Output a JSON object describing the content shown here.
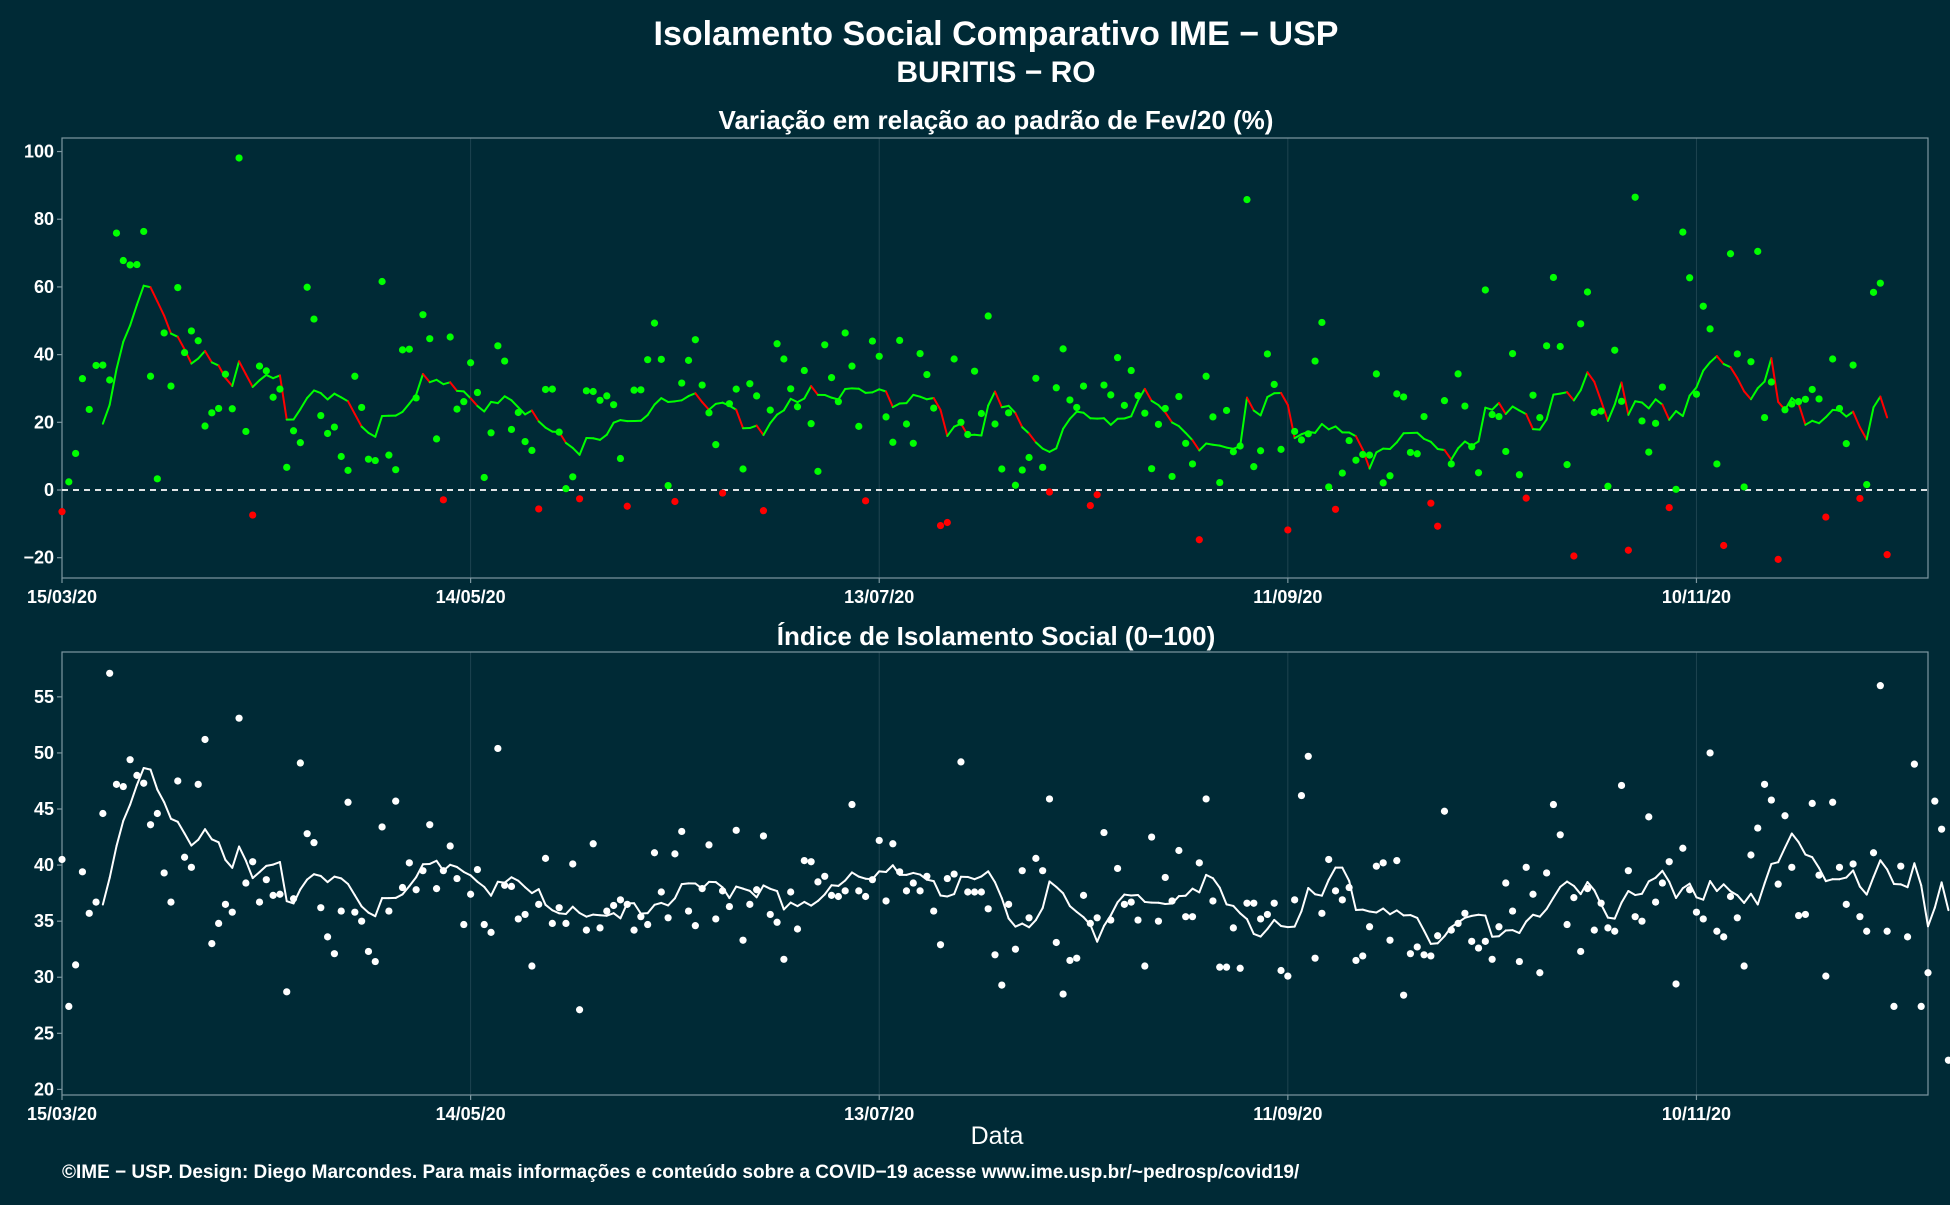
{
  "header": {
    "title": "Isolamento Social Comparativo IME − USP",
    "subtitle": "BURITIS − RO"
  },
  "footer": {
    "credits": "©IME − USP. Design: Diego Marcondes. Para mais informações e conteúdo sobre a COVID−19 acesse www.ime.usp.br/~pedrosp/covid19/"
  },
  "colors": {
    "background": "#002a36",
    "positive": "#00ff00",
    "negative": "#ff0000",
    "index": "#ffffff",
    "zero_line": "#ffffff",
    "grid": "#1e4450"
  },
  "chart_data": [
    {
      "type": "scatter",
      "title": "Variação em relação ao padrão de Fev/20 (%)",
      "xlabel": "",
      "ylabel": "",
      "x_start": "15/03/20",
      "x_end": "14/12/20",
      "xticks": [
        "15/03/20",
        "14/05/20",
        "13/07/20",
        "11/09/20",
        "10/11/20"
      ],
      "yticks": [
        -20,
        0,
        20,
        40,
        60,
        80,
        100
      ],
      "ylim": [
        -26,
        104
      ],
      "reference_line": {
        "y": 0,
        "style": "dashed"
      },
      "grid": true,
      "moving_average_window": 7,
      "values": [
        -6.4,
        2.4,
        10.8,
        32.9,
        23.8,
        36.8,
        36.9,
        32.5,
        75.9,
        67.8,
        66.5,
        66.6,
        76.4,
        33.6,
        3.3,
        46.4,
        30.7,
        59.8,
        40.6,
        47,
        44.1,
        18.9,
        22.8,
        24.1,
        34.2,
        24,
        98.1,
        17.3,
        -7.4,
        36.6,
        35.2,
        27.4,
        29.8,
        6.7,
        17.5,
        14,
        59.9,
        50.5,
        22,
        16.7,
        18.6,
        9.9,
        5.8,
        33.6,
        24.4,
        9.1,
        8.7,
        61.6,
        10.3,
        6,
        41.4,
        41.6,
        27.2,
        51.8,
        44.7,
        15.1,
        -2.9,
        45.2,
        23.9,
        26.1,
        37.6,
        28.8,
        3.7,
        16.9,
        42.6,
        38.1,
        17.9,
        22.9,
        14.3,
        11.7,
        -5.6,
        29.7,
        29.8,
        17.1,
        0.4,
        3.9,
        -2.6,
        29.3,
        29.1,
        26.5,
        27.8,
        25.2,
        9.3,
        -4.8,
        29.5,
        29.6,
        38.5,
        49.3,
        38.6,
        1.3,
        -3.4,
        31.6,
        38.3,
        44.4,
        31,
        22.8,
        13.4,
        -0.9,
        25.5,
        29.8,
        6.2,
        31.4,
        27.8,
        -6.1,
        23.6,
        43.2,
        38.7,
        29.9,
        24.6,
        35.3,
        19.6,
        5.5,
        42.9,
        33.2,
        26.1,
        46.4,
        36.6,
        18.8,
        -3.2,
        44,
        39.5,
        21.6,
        14.1,
        44.2,
        19.5,
        13.8,
        40.3,
        34.1,
        24.2,
        -10.5,
        -9.6,
        38.7,
        20,
        16.4,
        35.1,
        22.6,
        51.4,
        19.5,
        6.2,
        22.8,
        1.4,
        5.9,
        9.6,
        33,
        6.7,
        -0.6,
        30.2,
        41.7,
        26.6,
        24.4,
        30.7,
        -4.6,
        -1.4,
        31,
        28.1,
        39.1,
        25,
        35.3,
        27.9,
        22.7,
        6.3,
        19.4,
        24.1,
        4,
        27.6,
        13.8,
        7.7,
        -14.7,
        33.6,
        21.6,
        2.2,
        23.5,
        11.3,
        13,
        85.8,
        6.9,
        11.6,
        40.2,
        31.2,
        12,
        -11.8,
        17.3,
        14.8,
        16.6,
        38.1,
        49.5,
        0.9,
        -5.7,
        5,
        14.6,
        8.8,
        10.5,
        10.3,
        34.3,
        2.1,
        4.2,
        28.4,
        27.5,
        11.1,
        10.7,
        21.7,
        -3.9,
        -10.7,
        26.4,
        7.7,
        34.3,
        24.8,
        12.8,
        5.1,
        59.1,
        22.3,
        21.7,
        11.4,
        40.3,
        4.5,
        -2.4,
        28,
        21.4,
        42.6,
        62.8,
        42.4,
        7.5,
        -19.5,
        49.1,
        58.5,
        22.9,
        23.3,
        1.1,
        41.3,
        26.2,
        -17.8,
        86.5,
        20.4,
        11.2,
        19.7,
        30.4,
        -5.2,
        0.2,
        76.2,
        62.7,
        28.3,
        54.3,
        47.6,
        7.7,
        -16.4,
        69.8,
        40.2,
        0.9,
        37.9,
        70.5,
        21.4,
        31.9,
        -20.5,
        23.7,
        25.4,
        26.1,
        26.8,
        29.7,
        26.9,
        -8,
        38.7,
        24.1,
        13.7,
        36.9,
        -2.5,
        1.6,
        58.4,
        61.1,
        -19.1
      ]
    },
    {
      "type": "scatter",
      "title": "Índice de Isolamento Social (0−100)",
      "xlabel": "Data",
      "ylabel": "",
      "x_start": "15/03/20",
      "x_end": "14/12/20",
      "xticks": [
        "15/03/20",
        "14/05/20",
        "13/07/20",
        "11/09/20",
        "10/11/20"
      ],
      "yticks": [
        20,
        25,
        30,
        35,
        40,
        45,
        50,
        55
      ],
      "ylim": [
        19.5,
        59
      ],
      "grid": true,
      "moving_average_window": 7,
      "values": [
        40.5,
        27.4,
        31.1,
        39.4,
        35.7,
        36.7,
        44.6,
        57.1,
        47.2,
        47,
        49.4,
        48,
        47.3,
        43.6,
        44.6,
        39.3,
        36.7,
        47.5,
        40.7,
        39.8,
        47.2,
        51.2,
        33,
        34.8,
        36.5,
        35.8,
        53.1,
        38.4,
        40.3,
        36.7,
        38.7,
        37.3,
        37.4,
        28.7,
        37,
        49.1,
        42.8,
        42,
        36.2,
        33.6,
        32.1,
        35.9,
        45.6,
        35.8,
        35,
        32.3,
        31.4,
        43.4,
        35.9,
        45.7,
        38,
        40.2,
        37.8,
        39.5,
        43.6,
        37.9,
        39.5,
        41.7,
        38.8,
        34.7,
        37.4,
        39.6,
        34.7,
        34,
        50.4,
        38.2,
        38.1,
        35.2,
        35.6,
        31,
        36.5,
        40.6,
        34.8,
        36.2,
        34.8,
        40.1,
        27.1,
        34.2,
        41.9,
        34.4,
        35.9,
        36.4,
        36.9,
        36.5,
        34.2,
        35.4,
        34.7,
        41.1,
        37.6,
        35.3,
        41,
        43,
        35.9,
        34.6,
        37.9,
        41.8,
        35.2,
        37.7,
        36.3,
        43.1,
        33.3,
        36.5,
        37.8,
        42.6,
        35.6,
        34.9,
        31.6,
        37.6,
        34.3,
        40.4,
        40.3,
        38.5,
        39,
        37.3,
        37.2,
        37.7,
        45.4,
        37.7,
        37.2,
        38.7,
        42.2,
        36.8,
        41.9,
        39.4,
        37.7,
        38.4,
        37.7,
        39,
        35.9,
        32.9,
        38.8,
        39.2,
        49.2,
        37.6,
        37.6,
        37.6,
        36.1,
        32,
        29.3,
        36.5,
        32.5,
        39.5,
        35.3,
        40.6,
        39.5,
        45.9,
        33.1,
        28.5,
        31.5,
        31.7,
        37.3,
        34.8,
        35.3,
        42.9,
        35.1,
        39.7,
        36.5,
        36.7,
        35.1,
        31,
        42.5,
        35,
        38.9,
        36.8,
        41.3,
        35.4,
        35.4,
        40.2,
        45.9,
        36.8,
        30.9,
        30.9,
        34.4,
        30.8,
        36.6,
        36.6,
        35.2,
        35.6,
        36.6,
        30.6,
        30.1,
        36.9,
        46.2,
        49.7,
        31.7,
        35.7,
        40.5,
        37.7,
        36.9,
        38,
        31.5,
        31.9,
        34.5,
        39.9,
        40.2,
        33.3,
        40.4,
        28.4,
        32.1,
        32.7,
        32,
        31.9,
        33.7,
        44.8,
        34.2,
        34.8,
        35.7,
        33.2,
        32.6,
        33.2,
        31.6,
        34.5,
        38.4,
        35.9,
        31.4,
        39.8,
        37.4,
        30.4,
        39.3,
        45.4,
        42.7,
        34.7,
        37.1,
        32.3,
        37.9,
        34.2,
        36.6,
        34.4,
        34.1,
        47.1,
        39.5,
        35.4,
        35,
        44.3,
        36.7,
        38.4,
        40.3,
        29.4,
        41.5,
        37.8,
        35.8,
        35.2,
        50,
        34.1,
        33.6,
        37.2,
        35.3,
        31,
        40.9,
        43.3,
        47.2,
        45.8,
        38.3,
        44.4,
        39.8,
        35.5,
        35.6,
        45.5,
        39.1,
        30.1,
        45.6,
        39.8,
        36.5,
        40.1,
        35.4,
        34.1,
        41.1,
        56,
        34.1,
        27.4,
        39.9,
        33.6,
        49,
        27.4,
        30.4,
        45.7,
        43.2,
        22.6
      ]
    }
  ]
}
